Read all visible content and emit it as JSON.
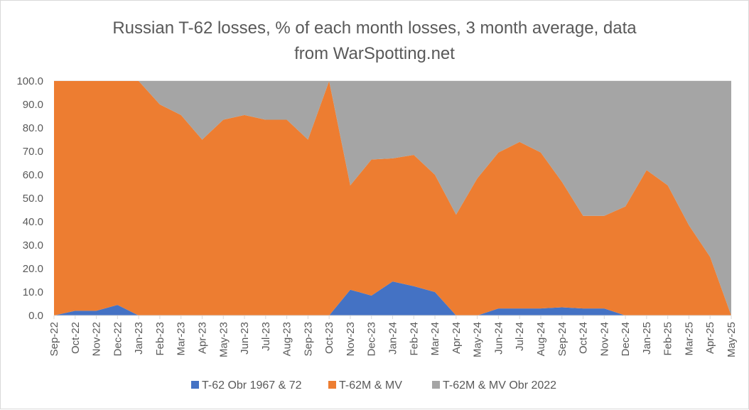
{
  "chart_data": {
    "type": "area",
    "stacked": true,
    "title_lines": [
      "Russian T-62 losses, % of each month losses, 3 month average, data",
      "from WarSpotting.net"
    ],
    "xlabel": "",
    "ylabel": "",
    "ylim": [
      0,
      100
    ],
    "y_ticks": [
      "0.0",
      "10.0",
      "20.0",
      "30.0",
      "40.0",
      "50.0",
      "60.0",
      "70.0",
      "80.0",
      "90.0",
      "100.0"
    ],
    "grid": true,
    "legend_position": "bottom",
    "categories": [
      "Sep-22",
      "Oct-22",
      "Nov-22",
      "Dec-22",
      "Jan-23",
      "Feb-23",
      "Mar-23",
      "Apr-23",
      "May-23",
      "Jun-23",
      "Jul-23",
      "Aug-23",
      "Sep-23",
      "Oct-23",
      "Nov-23",
      "Dec-23",
      "Jan-24",
      "Feb-24",
      "Mar-24",
      "Apr-24",
      "May-24",
      "Jun-24",
      "Jul-24",
      "Aug-24",
      "Sep-24",
      "Oct-24",
      "Nov-24",
      "Dec-24",
      "Jan-25",
      "Feb-25",
      "Mar-25",
      "Apr-25",
      "May-25"
    ],
    "series": [
      {
        "name": "T-62 Obr 1967 & 72",
        "color": "#4472c4",
        "values": [
          0,
          2,
          2,
          4.5,
          0,
          0,
          0,
          0,
          0,
          0,
          0,
          0,
          0,
          0,
          11,
          8.5,
          14.5,
          12.5,
          10,
          0,
          0,
          3,
          3,
          3,
          3.5,
          3,
          3,
          0,
          0,
          0,
          0,
          0,
          0
        ]
      },
      {
        "name": "T-62M & MV",
        "color": "#ed7d31",
        "values": [
          100,
          98,
          98,
          95.5,
          100,
          90,
          85.5,
          75,
          83.5,
          85.5,
          83.5,
          83.5,
          75,
          100,
          44.5,
          58,
          52.5,
          56,
          50,
          43,
          58.5,
          66.5,
          71,
          66.5,
          53.5,
          39.5,
          39.5,
          46.5,
          62,
          55.5,
          38.5,
          25,
          0
        ]
      },
      {
        "name": "T-62M & MV Obr 2022",
        "color": "#a5a5a5",
        "values": [
          0,
          0,
          0,
          0,
          0,
          10,
          14.5,
          25,
          16.5,
          14.5,
          16.5,
          16.5,
          25,
          0,
          44.5,
          33.5,
          33,
          31.5,
          40,
          57,
          41.5,
          30.5,
          26,
          30.5,
          43,
          57.5,
          57.5,
          53.5,
          38,
          44.5,
          61.5,
          75,
          100
        ]
      }
    ]
  }
}
